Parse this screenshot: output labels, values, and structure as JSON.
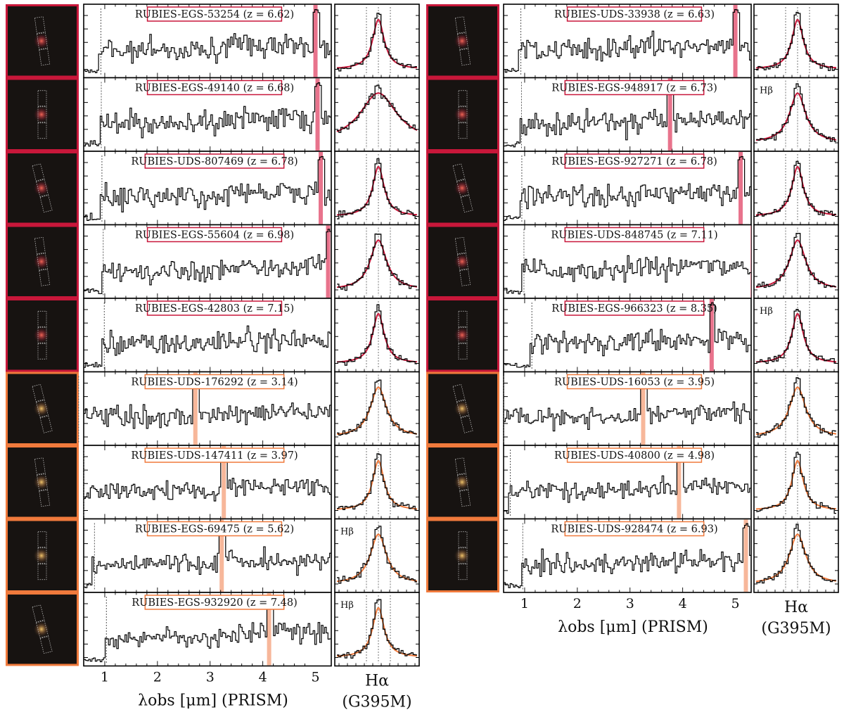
{
  "colors": {
    "red": "#c8173a",
    "orange": "#f07a3c",
    "red_fill": "#e8738c",
    "orange_fill": "#f7b79a",
    "spectrum": "#000000"
  },
  "columns": [
    {
      "rows": [
        {
          "name": "RUBIES-EGS-53254",
          "z": "6.62",
          "group": "red"
        },
        {
          "name": "RUBIES-EGS-49140",
          "z": "6.68",
          "group": "red"
        },
        {
          "name": "RUBIES-UDS-807469",
          "z": "6.78",
          "group": "red"
        },
        {
          "name": "RUBIES-EGS-55604",
          "z": "6.98",
          "group": "red"
        },
        {
          "name": "RUBIES-EGS-42803",
          "z": "7.15",
          "group": "red"
        },
        {
          "name": "RUBIES-UDS-176292",
          "z": "3.14",
          "group": "orange"
        },
        {
          "name": "RUBIES-UDS-147411",
          "z": "3.97",
          "group": "orange"
        },
        {
          "name": "RUBIES-EGS-69475",
          "z": "5.62",
          "group": "orange",
          "zoom_note": "Hβ"
        },
        {
          "name": "RUBIES-EGS-932920",
          "z": "7.48",
          "group": "orange",
          "zoom_note": "Hβ"
        }
      ]
    },
    {
      "rows": [
        {
          "name": "RUBIES-UDS-33938",
          "z": "6.63",
          "group": "red"
        },
        {
          "name": "RUBIES-EGS-948917",
          "z": "6.73",
          "group": "red",
          "zoom_note": "Hβ"
        },
        {
          "name": "RUBIES-EGS-927271",
          "z": "6.78",
          "group": "red"
        },
        {
          "name": "RUBIES-UDS-848745",
          "z": "7.11",
          "group": "red"
        },
        {
          "name": "RUBIES-EGS-966323",
          "z": "8.35",
          "group": "red",
          "zoom_note": "Hβ"
        },
        {
          "name": "RUBIES-UDS-16053",
          "z": "3.95",
          "group": "orange"
        },
        {
          "name": "RUBIES-UDS-40800",
          "z": "4.98",
          "group": "orange"
        },
        {
          "name": "RUBIES-UDS-928474",
          "z": "6.93",
          "group": "orange"
        }
      ]
    }
  ],
  "axis": {
    "xticks": [
      "1",
      "2",
      "3",
      "4",
      "5"
    ],
    "xlim": [
      0.6,
      5.3
    ],
    "prism_label": "λobs [μm] (PRISM)",
    "zoom_label_line1": "Hα",
    "zoom_label_line2": "(G395M)"
  },
  "chart_data": {
    "type": "line",
    "x_unit": "μm",
    "xlim": [
      0.6,
      5.3
    ],
    "series": [
      {
        "name": "RUBIES-EGS-53254",
        "z": 6.62,
        "line_um": 5.0
      },
      {
        "name": "RUBIES-EGS-49140",
        "z": 6.68,
        "line_um": 5.04
      },
      {
        "name": "RUBIES-UDS-807469",
        "z": 6.78,
        "line_um": 5.1
      },
      {
        "name": "RUBIES-EGS-55604",
        "z": 6.98,
        "line_um": 5.24
      },
      {
        "name": "RUBIES-EGS-42803",
        "z": 7.15,
        "line_um": 5.35
      },
      {
        "name": "RUBIES-UDS-176292",
        "z": 3.14,
        "line_um": 2.72
      },
      {
        "name": "RUBIES-UDS-147411",
        "z": 3.97,
        "line_um": 3.26
      },
      {
        "name": "RUBIES-EGS-69475",
        "z": 5.62,
        "line_um": 3.22
      },
      {
        "name": "RUBIES-EGS-932920",
        "z": 7.48,
        "line_um": 4.12
      },
      {
        "name": "RUBIES-UDS-33938",
        "z": 6.63,
        "line_um": 5.0
      },
      {
        "name": "RUBIES-EGS-948917",
        "z": 6.73,
        "line_um": 3.76
      },
      {
        "name": "RUBIES-EGS-927271",
        "z": 6.78,
        "line_um": 5.1
      },
      {
        "name": "RUBIES-UDS-848745",
        "z": 7.11,
        "line_um": 5.33
      },
      {
        "name": "RUBIES-EGS-966323",
        "z": 8.35,
        "line_um": 4.55
      },
      {
        "name": "RUBIES-UDS-16053",
        "z": 3.95,
        "line_um": 3.25
      },
      {
        "name": "RUBIES-UDS-40800",
        "z": 4.98,
        "line_um": 3.93
      },
      {
        "name": "RUBIES-UDS-928474",
        "z": 6.93,
        "line_um": 5.2
      }
    ]
  }
}
